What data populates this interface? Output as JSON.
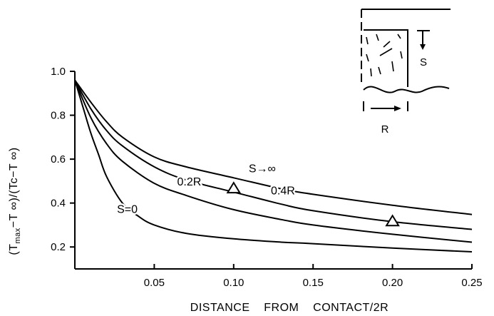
{
  "chart_data": {
    "type": "line",
    "xlabel": "DISTANCE    FROM    CONTACT/2R",
    "ylabel": "(Tₘₐₓ −T ∞)/(Tc−T ∞)",
    "ylabel_parts": {
      "lead": "(T",
      "sub": "max",
      "rest": "−T ∞)/(Tc−T ∞)"
    },
    "xlim": [
      0,
      0.25
    ],
    "ylim": [
      0.1,
      1.0
    ],
    "xticks": [
      0.05,
      0.1,
      0.15,
      0.2,
      0.25
    ],
    "xtick_labels": [
      "0.05",
      "0.10",
      "0.15",
      "0.20",
      "0.25"
    ],
    "yticks": [
      0.2,
      0.4,
      0.6,
      0.8,
      1.0
    ],
    "ytick_labels": [
      "0.2",
      "0.4",
      "0.6",
      "0.8",
      "1.0"
    ],
    "grid": false,
    "series": [
      {
        "name": "S=0",
        "label_text": "S=0",
        "x": [
          0.0,
          0.005,
          0.01,
          0.015,
          0.02,
          0.03,
          0.04,
          0.05,
          0.07,
          0.1,
          0.13,
          0.15,
          0.2,
          0.25
        ],
        "y": [
          0.96,
          0.84,
          0.72,
          0.62,
          0.52,
          0.4,
          0.34,
          0.3,
          0.262,
          0.237,
          0.222,
          0.215,
          0.195,
          0.178
        ]
      },
      {
        "name": "0.2R",
        "label_text": "0.2R",
        "x": [
          0.0,
          0.01,
          0.02,
          0.03,
          0.05,
          0.07,
          0.1,
          0.13,
          0.15,
          0.2,
          0.25
        ],
        "y": [
          0.96,
          0.79,
          0.67,
          0.59,
          0.49,
          0.435,
          0.37,
          0.325,
          0.3,
          0.258,
          0.222
        ]
      },
      {
        "name": "0.4R",
        "label_text": "0.4R",
        "x": [
          0.0,
          0.01,
          0.02,
          0.03,
          0.05,
          0.07,
          0.1,
          0.13,
          0.15,
          0.2,
          0.25
        ],
        "y": [
          0.96,
          0.83,
          0.73,
          0.66,
          0.565,
          0.505,
          0.45,
          0.395,
          0.365,
          0.315,
          0.28
        ]
      },
      {
        "name": "S→∞",
        "label_text": "S→∞",
        "x": [
          0.0,
          0.01,
          0.02,
          0.03,
          0.05,
          0.07,
          0.1,
          0.13,
          0.15,
          0.2,
          0.25
        ],
        "y": [
          0.96,
          0.86,
          0.77,
          0.7,
          0.61,
          0.565,
          0.515,
          0.465,
          0.44,
          0.39,
          0.348
        ]
      }
    ],
    "markers": [
      {
        "shape": "triangle",
        "x": 0.1,
        "y": 0.47
      },
      {
        "shape": "triangle",
        "x": 0.2,
        "y": 0.32
      }
    ],
    "label_positions": [
      {
        "series": 0,
        "x": 0.033,
        "y": 0.355
      },
      {
        "series": 1,
        "x": 0.072,
        "y": 0.48
      },
      {
        "series": 2,
        "x": 0.131,
        "y": 0.44
      },
      {
        "series": 3,
        "x": 0.118,
        "y": 0.54
      }
    ]
  },
  "inset": {
    "s_label": "S",
    "r_label": "R"
  }
}
